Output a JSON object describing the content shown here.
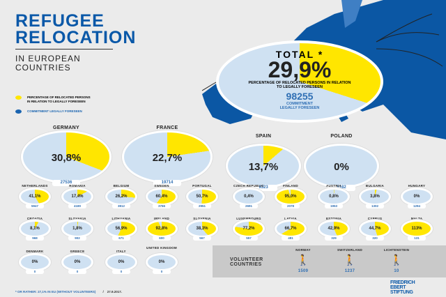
{
  "title": {
    "line1": "REFUGEE",
    "line2": "RELOCATION",
    "sub1": "IN EUROPEAN",
    "sub2": "COUNTRIES"
  },
  "legend": [
    {
      "label": "PERCENTAGE OF RELOCATED PERSONS IN RELATION TO LEGALLY FORESEEN",
      "color": "#ffe600"
    },
    {
      "label": "COMMITMENT LEGALLY FORESEEN",
      "color": "#1a64b0"
    }
  ],
  "total": {
    "label": "TOTAL",
    "star": "*",
    "pct_text": "29,9%",
    "pct": 29.9,
    "desc": "PERCENTAGE OF RELOCATED PERSONS IN RELATION TO LEGALLY FORESEEN",
    "commitment": "98255",
    "commitment_label": "COMMITMENT LEGALLY FORESEEN"
  },
  "big": [
    {
      "name": "GERMANY",
      "pct_text": "30,8%",
      "pct": 30.8,
      "commitment": "27536"
    },
    {
      "name": "FRANCE",
      "pct_text": "22,7%",
      "pct": 22.7,
      "commitment": "19714"
    },
    {
      "name": "SPAIN",
      "pct_text": "13,7%",
      "pct": 13.7,
      "commitment": "9323"
    },
    {
      "name": "POLAND",
      "pct_text": "0%",
      "pct": 0,
      "commitment": "6182"
    }
  ],
  "small": [
    {
      "name": "NETHERLANDS",
      "pct_text": "41,1%",
      "pct": 41.1,
      "commitment": "5947"
    },
    {
      "name": "ROMANIA",
      "pct_text": "17,4%",
      "pct": 17.4,
      "commitment": "4180"
    },
    {
      "name": "BELGIUM",
      "pct_text": "26,2%",
      "pct": 26.2,
      "commitment": "3812"
    },
    {
      "name": "SWEDEN",
      "pct_text": "60,4%",
      "pct": 60.4,
      "commitment": "3766"
    },
    {
      "name": "PORTUGAL",
      "pct_text": "50,7%",
      "pct": 50.7,
      "commitment": "2951"
    },
    {
      "name": "CZECH REPUBLIC",
      "pct_text": "0,4%",
      "pct": 0.4,
      "commitment": "2691"
    },
    {
      "name": "FINLAND",
      "pct_text": "95,0%",
      "pct": 95.0,
      "commitment": "2078"
    },
    {
      "name": "AUSTRIA",
      "pct_text": "0,8%",
      "pct": 0.8,
      "commitment": "1953"
    },
    {
      "name": "BULGARIA",
      "pct_text": "3,8%",
      "pct": 3.8,
      "commitment": "1302"
    },
    {
      "name": "HUNGARY",
      "pct_text": "0%",
      "pct": 0,
      "commitment": "1294"
    },
    {
      "name": "CROATIA",
      "pct_text": "8,1%",
      "pct": 8.1,
      "commitment": "968"
    },
    {
      "name": "SLOVAKIA",
      "pct_text": "1,8%",
      "pct": 1.8,
      "commitment": "902"
    },
    {
      "name": "LITHUANIA",
      "pct_text": "56,9%",
      "pct": 56.9,
      "commitment": "671"
    },
    {
      "name": "IRELAND",
      "pct_text": "92,8%",
      "pct": 92.8,
      "commitment": "600"
    },
    {
      "name": "SLOVENIA",
      "pct_text": "38,3%",
      "pct": 38.3,
      "commitment": "567"
    },
    {
      "name": "LUXEMBOURG",
      "pct_text": "77,2%",
      "pct": 77.2,
      "commitment": "557"
    },
    {
      "name": "LATVIA",
      "pct_text": "66,7%",
      "pct": 66.7,
      "commitment": "481"
    },
    {
      "name": "ESTONIA",
      "pct_text": "42,9%",
      "pct": 42.9,
      "commitment": "329"
    },
    {
      "name": "CYPRUS",
      "pct_text": "44,7%",
      "pct": 44.7,
      "commitment": "320"
    },
    {
      "name": "MALTA",
      "pct_text": "113%",
      "pct": 113,
      "commitment": "131"
    },
    {
      "name": "DENMARK",
      "pct_text": "0%",
      "pct": 0,
      "commitment": "0"
    },
    {
      "name": "GREECE",
      "pct_text": "0%",
      "pct": 0,
      "commitment": "0"
    },
    {
      "name": "ITALY",
      "pct_text": "0%",
      "pct": 0,
      "commitment": "0"
    },
    {
      "name": "UNITED KINGDOM",
      "pct_text": "0%",
      "pct": 0,
      "commitment": "0"
    }
  ],
  "volunteer": {
    "label": "VOLUNTEER COUNTRIES",
    "countries": [
      {
        "name": "NORWAY",
        "count": "1509"
      },
      {
        "name": "SWITZERLAND",
        "count": "1237"
      },
      {
        "name": "LICHTENSTEIN",
        "count": "10"
      }
    ]
  },
  "footer": {
    "note": "* OR RATHER: 27,1% IN EU (WITHOUT VOLUNTEERS)",
    "sep": "/",
    "date": "27.9.2017."
  },
  "logo": {
    "l1": "FRIEDRICH",
    "l2": "EBERT",
    "l3": "STIFTUNG"
  },
  "colors": {
    "yellow": "#ffe600",
    "light_blue": "#cfe1f2",
    "blue": "#1a64b0"
  }
}
